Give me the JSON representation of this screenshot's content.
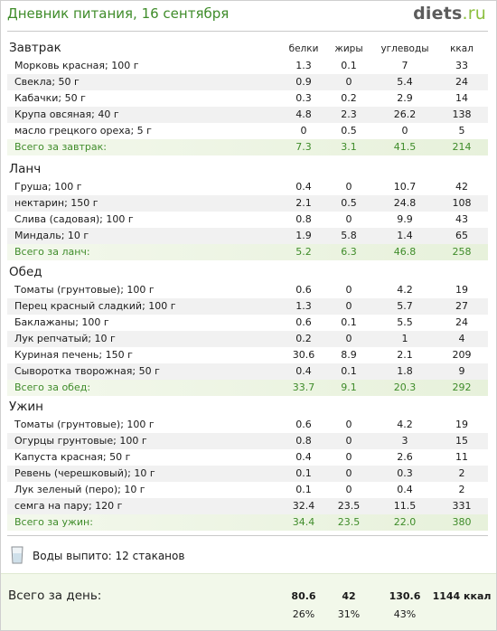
{
  "header": {
    "title": "Дневник питания, 16 сентября",
    "logo_main": "diets",
    "logo_suffix": ".ru"
  },
  "columns": {
    "protein": "белки",
    "fat": "жиры",
    "carbs": "углеводы",
    "kcal": "ккал"
  },
  "meals": [
    {
      "title": "Завтрак",
      "items": [
        {
          "name": "Морковь красная; 100 г",
          "protein": "1.3",
          "fat": "0.1",
          "carbs": "7",
          "kcal": "33"
        },
        {
          "name": "Свекла; 50 г",
          "protein": "0.9",
          "fat": "0",
          "carbs": "5.4",
          "kcal": "24"
        },
        {
          "name": "Кабачки; 50 г",
          "protein": "0.3",
          "fat": "0.2",
          "carbs": "2.9",
          "kcal": "14"
        },
        {
          "name": "Крупа овсяная; 40 г",
          "protein": "4.8",
          "fat": "2.3",
          "carbs": "26.2",
          "kcal": "138"
        },
        {
          "name": "масло грецкого ореха; 5 г",
          "protein": "0",
          "fat": "0.5",
          "carbs": "0",
          "kcal": "5"
        }
      ],
      "total": {
        "name": "Всего за завтрак:",
        "protein": "7.3",
        "fat": "3.1",
        "carbs": "41.5",
        "kcal": "214"
      }
    },
    {
      "title": "Ланч",
      "items": [
        {
          "name": "Груша; 100 г",
          "protein": "0.4",
          "fat": "0",
          "carbs": "10.7",
          "kcal": "42"
        },
        {
          "name": "нектарин; 150 г",
          "protein": "2.1",
          "fat": "0.5",
          "carbs": "24.8",
          "kcal": "108"
        },
        {
          "name": "Слива (садовая); 100 г",
          "protein": "0.8",
          "fat": "0",
          "carbs": "9.9",
          "kcal": "43"
        },
        {
          "name": "Миндаль; 10 г",
          "protein": "1.9",
          "fat": "5.8",
          "carbs": "1.4",
          "kcal": "65"
        }
      ],
      "total": {
        "name": "Всего за ланч:",
        "protein": "5.2",
        "fat": "6.3",
        "carbs": "46.8",
        "kcal": "258"
      }
    },
    {
      "title": "Обед",
      "items": [
        {
          "name": "Томаты (грунтовые); 100 г",
          "protein": "0.6",
          "fat": "0",
          "carbs": "4.2",
          "kcal": "19"
        },
        {
          "name": "Перец красный сладкий; 100 г",
          "protein": "1.3",
          "fat": "0",
          "carbs": "5.7",
          "kcal": "27"
        },
        {
          "name": "Баклажаны; 100 г",
          "protein": "0.6",
          "fat": "0.1",
          "carbs": "5.5",
          "kcal": "24"
        },
        {
          "name": "Лук репчатый; 10 г",
          "protein": "0.2",
          "fat": "0",
          "carbs": "1",
          "kcal": "4"
        },
        {
          "name": "Куриная печень; 150 г",
          "protein": "30.6",
          "fat": "8.9",
          "carbs": "2.1",
          "kcal": "209"
        },
        {
          "name": "Сыворотка творожная; 50 г",
          "protein": "0.4",
          "fat": "0.1",
          "carbs": "1.8",
          "kcal": "9"
        }
      ],
      "total": {
        "name": "Всего за обед:",
        "protein": "33.7",
        "fat": "9.1",
        "carbs": "20.3",
        "kcal": "292"
      }
    },
    {
      "title": "Ужин",
      "items": [
        {
          "name": "Томаты (грунтовые); 100 г",
          "protein": "0.6",
          "fat": "0",
          "carbs": "4.2",
          "kcal": "19"
        },
        {
          "name": "Огурцы грунтовые; 100 г",
          "protein": "0.8",
          "fat": "0",
          "carbs": "3",
          "kcal": "15"
        },
        {
          "name": "Капуста красная; 50 г",
          "protein": "0.4",
          "fat": "0",
          "carbs": "2.6",
          "kcal": "11"
        },
        {
          "name": "Ревень (черешковый); 10 г",
          "protein": "0.1",
          "fat": "0",
          "carbs": "0.3",
          "kcal": "2"
        },
        {
          "name": "Лук зеленый (перо); 10 г",
          "protein": "0.1",
          "fat": "0",
          "carbs": "0.4",
          "kcal": "2"
        },
        {
          "name": "семга на пару; 120 г",
          "protein": "32.4",
          "fat": "23.5",
          "carbs": "11.5",
          "kcal": "331"
        }
      ],
      "total": {
        "name": "Всего за ужин:",
        "protein": "34.4",
        "fat": "23.5",
        "carbs": "22.0",
        "kcal": "380"
      }
    }
  ],
  "water": {
    "icon": "glass-icon",
    "label": "Воды выпито: 12 стаканов"
  },
  "day_total": {
    "label": "Всего за день:",
    "protein": "80.6",
    "fat": "42",
    "carbs": "130.6",
    "kcal": "1144 ккал",
    "protein_pct": "26%",
    "fat_pct": "31%",
    "carbs_pct": "43%"
  },
  "colors": {
    "accent_green": "#3f8c2a",
    "logo_suffix": "#8cbf3f",
    "total_bg": "#e7f1db",
    "alt_row": "#f1f1f1"
  }
}
